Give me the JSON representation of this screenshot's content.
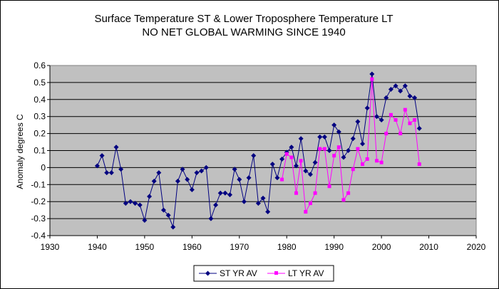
{
  "chart_data": {
    "type": "line",
    "title_lines": [
      "Surface Temperature ST & Lower Troposphere Temperature LT",
      "NO NET GLOBAL WARMING SINCE 1940"
    ],
    "xlabel": "",
    "ylabel": "Anomaly degrees C",
    "xlim": [
      1930,
      2020
    ],
    "ylim": [
      -0.4,
      0.6
    ],
    "x_ticks": [
      "1930",
      "1940",
      "1950",
      "1960",
      "1970",
      "1980",
      "1990",
      "2000",
      "2010",
      "2020"
    ],
    "y_ticks": [
      "0.6",
      "0.5",
      "0.4",
      "0.3",
      "0.2",
      "0.1",
      "0",
      "-0.1",
      "-0.2",
      "-0.3",
      "-0.4"
    ],
    "grid": "horizontal",
    "plot_background": "#c0c0c0",
    "legend_position": "bottom-center",
    "series": [
      {
        "name": "ST YR AV",
        "color": "#000080",
        "marker": "diamond",
        "x": [
          1940,
          1941,
          1942,
          1943,
          1944,
          1945,
          1946,
          1947,
          1948,
          1949,
          1950,
          1951,
          1952,
          1953,
          1954,
          1955,
          1956,
          1957,
          1958,
          1959,
          1960,
          1961,
          1962,
          1963,
          1964,
          1965,
          1966,
          1967,
          1968,
          1969,
          1970,
          1971,
          1972,
          1973,
          1974,
          1975,
          1976,
          1977,
          1978,
          1979,
          1980,
          1981,
          1982,
          1983,
          1984,
          1985,
          1986,
          1987,
          1988,
          1989,
          1990,
          1991,
          1992,
          1993,
          1994,
          1995,
          1996,
          1997,
          1998,
          1999,
          2000,
          2001,
          2002,
          2003,
          2004,
          2005,
          2006,
          2007,
          2008
        ],
        "y": [
          0.01,
          0.07,
          -0.03,
          -0.03,
          0.12,
          -0.01,
          -0.21,
          -0.2,
          -0.21,
          -0.22,
          -0.31,
          -0.17,
          -0.08,
          -0.03,
          -0.25,
          -0.28,
          -0.35,
          -0.08,
          -0.01,
          -0.07,
          -0.13,
          -0.03,
          -0.02,
          0.0,
          -0.3,
          -0.22,
          -0.15,
          -0.15,
          -0.16,
          -0.01,
          -0.07,
          -0.2,
          -0.06,
          0.07,
          -0.21,
          -0.18,
          -0.26,
          0.02,
          -0.06,
          0.05,
          0.09,
          0.12,
          0.01,
          0.17,
          -0.02,
          -0.04,
          0.03,
          0.18,
          0.18,
          0.1,
          0.25,
          0.21,
          0.06,
          0.1,
          0.17,
          0.27,
          0.14,
          0.35,
          0.55,
          0.3,
          0.28,
          0.41,
          0.46,
          0.48,
          0.45,
          0.48,
          0.42,
          0.41,
          0.23
        ]
      },
      {
        "name": "LT YR AV",
        "color": "#ff00ff",
        "marker": "square",
        "x": [
          1979,
          1980,
          1981,
          1982,
          1983,
          1984,
          1985,
          1986,
          1987,
          1988,
          1989,
          1990,
          1991,
          1992,
          1993,
          1994,
          1995,
          1996,
          1997,
          1998,
          1999,
          2000,
          2001,
          2002,
          2003,
          2004,
          2005,
          2006,
          2007,
          2008
        ],
        "y": [
          -0.07,
          0.08,
          0.06,
          -0.15,
          0.04,
          -0.26,
          -0.21,
          -0.15,
          0.11,
          0.11,
          -0.11,
          0.07,
          0.12,
          -0.19,
          -0.15,
          -0.01,
          0.11,
          0.02,
          0.05,
          0.52,
          0.04,
          0.03,
          0.2,
          0.31,
          0.28,
          0.2,
          0.34,
          0.26,
          0.28,
          0.02
        ]
      }
    ]
  }
}
